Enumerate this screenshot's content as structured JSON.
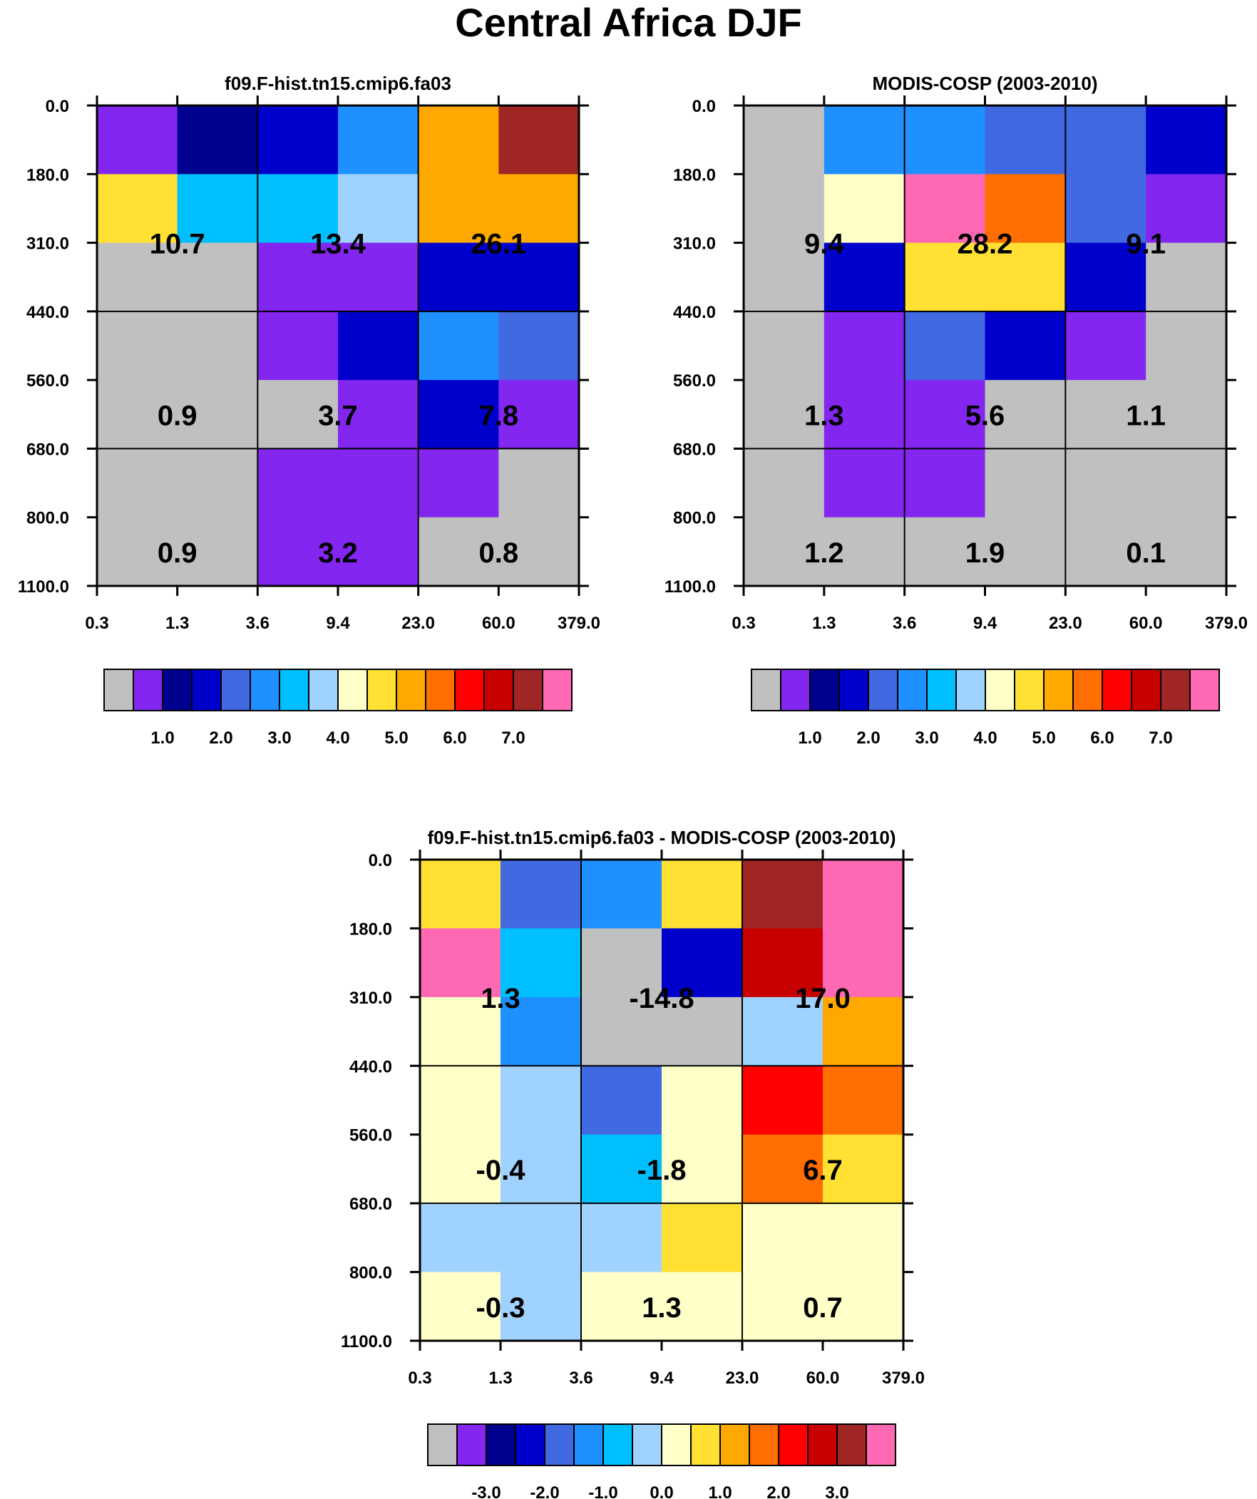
{
  "title": "Central Africa DJF",
  "palette": {
    "colors": [
      "#c0c0c0",
      "#8226f0",
      "#00008f",
      "#0000cd",
      "#4169e1",
      "#1e90ff",
      "#00bfff",
      "#a0d2ff",
      "#ffffc8",
      "#ffe033",
      "#ffa800",
      "#ff6e00",
      "#ff0000",
      "#c80000",
      "#a02525",
      "#ff69b4"
    ]
  },
  "chart_data": [
    {
      "type": "heatmap",
      "title": "f09.F-hist.tn15.cmip6.fa03",
      "x_ticks": [
        "0.3",
        "1.3",
        "3.6",
        "9.4",
        "23.0",
        "60.0",
        "379.0"
      ],
      "y_ticks": [
        "0.0",
        "180.0",
        "310.0",
        "440.0",
        "560.0",
        "680.0",
        "800.0",
        "1100.0"
      ],
      "cells": [
        [
          1,
          2,
          3,
          5,
          10,
          14
        ],
        [
          9,
          6,
          6,
          7,
          10,
          10
        ],
        [
          0,
          0,
          1,
          1,
          3,
          3
        ],
        [
          0,
          0,
          1,
          3,
          5,
          4
        ],
        [
          0,
          0,
          0,
          1,
          3,
          1
        ],
        [
          0,
          0,
          1,
          1,
          1,
          0
        ],
        [
          0,
          0,
          1,
          1,
          0,
          0
        ]
      ],
      "label_rows": [
        1.5,
        4,
        6
      ],
      "label_cols": [
        1,
        3,
        5
      ],
      "labels": [
        [
          "10.7",
          "13.4",
          "26.1"
        ],
        [
          "0.9",
          "3.7",
          "7.8"
        ],
        [
          "0.9",
          "3.2",
          "0.8"
        ]
      ],
      "colorbar_labels": [
        "1.0",
        "2.0",
        "3.0",
        "4.0",
        "5.0",
        "6.0",
        "7.0"
      ]
    },
    {
      "type": "heatmap",
      "title": "MODIS-COSP (2003-2010)",
      "x_ticks": [
        "0.3",
        "1.3",
        "3.6",
        "9.4",
        "23.0",
        "60.0",
        "379.0"
      ],
      "y_ticks": [
        "0.0",
        "180.0",
        "310.0",
        "440.0",
        "560.0",
        "680.0",
        "800.0",
        "1100.0"
      ],
      "cells": [
        [
          0,
          5,
          5,
          4,
          4,
          3
        ],
        [
          0,
          8,
          15,
          11,
          4,
          1
        ],
        [
          0,
          3,
          9,
          9,
          3,
          0
        ],
        [
          0,
          1,
          4,
          3,
          1,
          0
        ],
        [
          0,
          1,
          1,
          0,
          0,
          0
        ],
        [
          0,
          1,
          1,
          0,
          0,
          0
        ],
        [
          0,
          0,
          0,
          0,
          0,
          0
        ]
      ],
      "label_rows": [
        1.5,
        4,
        6
      ],
      "label_cols": [
        1,
        3,
        5
      ],
      "labels": [
        [
          "9.4",
          "28.2",
          "9.1"
        ],
        [
          "1.3",
          "5.6",
          "1.1"
        ],
        [
          "1.2",
          "1.9",
          "0.1"
        ]
      ],
      "colorbar_labels": [
        "1.0",
        "2.0",
        "3.0",
        "4.0",
        "5.0",
        "6.0",
        "7.0"
      ]
    },
    {
      "type": "heatmap",
      "title": "f09.F-hist.tn15.cmip6.fa03 - MODIS-COSP (2003-2010)",
      "x_ticks": [
        "0.3",
        "1.3",
        "3.6",
        "9.4",
        "23.0",
        "60.0",
        "379.0"
      ],
      "y_ticks": [
        "0.0",
        "180.0",
        "310.0",
        "440.0",
        "560.0",
        "680.0",
        "800.0",
        "1100.0"
      ],
      "cells": [
        [
          9,
          4,
          5,
          9,
          14,
          15
        ],
        [
          15,
          6,
          0,
          3,
          13,
          15
        ],
        [
          8,
          5,
          0,
          0,
          7,
          10
        ],
        [
          8,
          7,
          4,
          8,
          12,
          11
        ],
        [
          8,
          7,
          6,
          8,
          11,
          9
        ],
        [
          7,
          7,
          7,
          9,
          8,
          8
        ],
        [
          8,
          7,
          8,
          8,
          8,
          8
        ]
      ],
      "label_rows": [
        1.5,
        4,
        6
      ],
      "label_cols": [
        1,
        3,
        5
      ],
      "labels": [
        [
          "1.3",
          "-14.8",
          "17.0"
        ],
        [
          "-0.4",
          "-1.8",
          "6.7"
        ],
        [
          "-0.3",
          "1.3",
          "0.7"
        ]
      ],
      "colorbar_labels": [
        "-3.0",
        "-2.0",
        "-1.0",
        "0.0",
        "1.0",
        "2.0",
        "3.0"
      ]
    }
  ]
}
